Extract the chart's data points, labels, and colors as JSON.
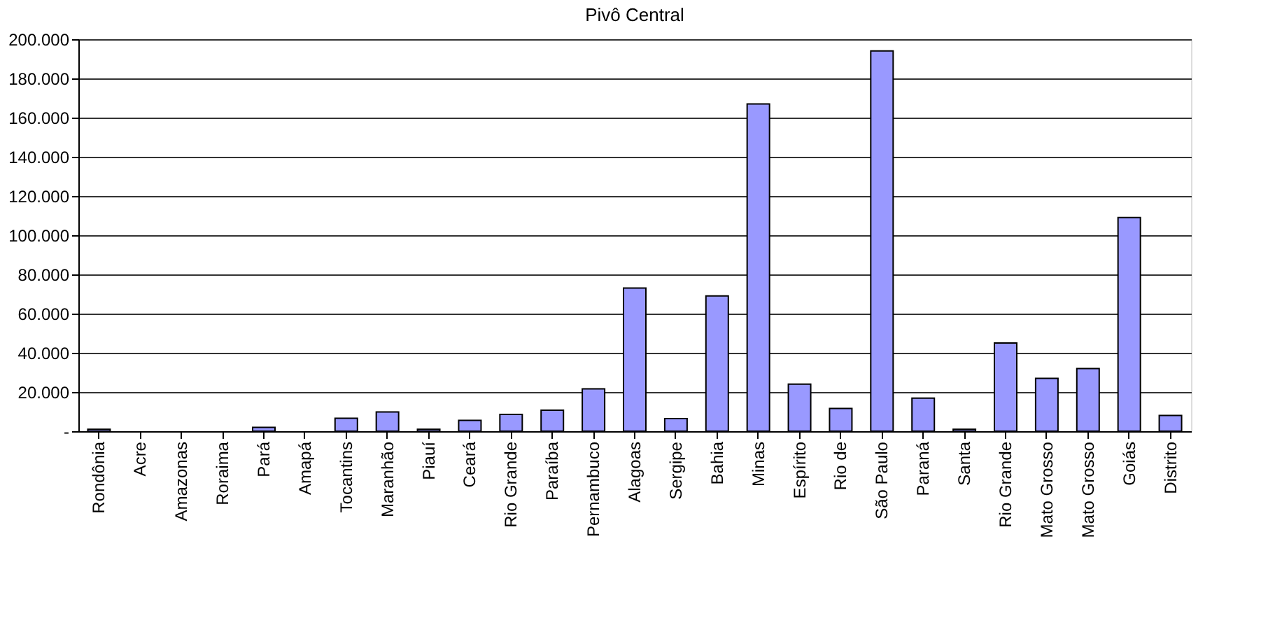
{
  "chart_data": {
    "type": "bar",
    "title": "Pivô Central",
    "categories": [
      "Rondônia",
      "Acre",
      "Amazonas",
      "Roraima",
      "Pará",
      "Amapá",
      "Tocantins",
      "Maranhão",
      "Piauí",
      "Ceará",
      "Rio Grande",
      "Paraíba",
      "Pernambuco",
      "Alagoas",
      "Sergipe",
      "Bahia",
      "Minas",
      "Espírito",
      "Rio de",
      "São Paulo",
      "Paraná",
      "Santa",
      "Rio Grande",
      "Mato Grosso",
      "Mato Grosso",
      "Goiás",
      "Distrito"
    ],
    "values": [
      1000,
      null,
      null,
      null,
      2000,
      null,
      6600,
      9800,
      1000,
      5500,
      8600,
      10700,
      21600,
      73000,
      6400,
      69000,
      167000,
      24000,
      11600,
      194000,
      16900,
      1000,
      45000,
      27000,
      32000,
      109000,
      8000
    ],
    "color": "#9999ff",
    "ylim": [
      0,
      200000
    ],
    "yticks": [
      {
        "value": 0,
        "label": "-"
      },
      {
        "value": 20000,
        "label": "20.000"
      },
      {
        "value": 40000,
        "label": "40.000"
      },
      {
        "value": 60000,
        "label": "60.000"
      },
      {
        "value": 80000,
        "label": "80.000"
      },
      {
        "value": 100000,
        "label": "100.000"
      },
      {
        "value": 120000,
        "label": "120.000"
      },
      {
        "value": 140000,
        "label": "140.000"
      },
      {
        "value": 160000,
        "label": "160.000"
      },
      {
        "value": 180000,
        "label": "180.000"
      },
      {
        "value": 200000,
        "label": "200.000"
      }
    ],
    "grid": "y"
  }
}
